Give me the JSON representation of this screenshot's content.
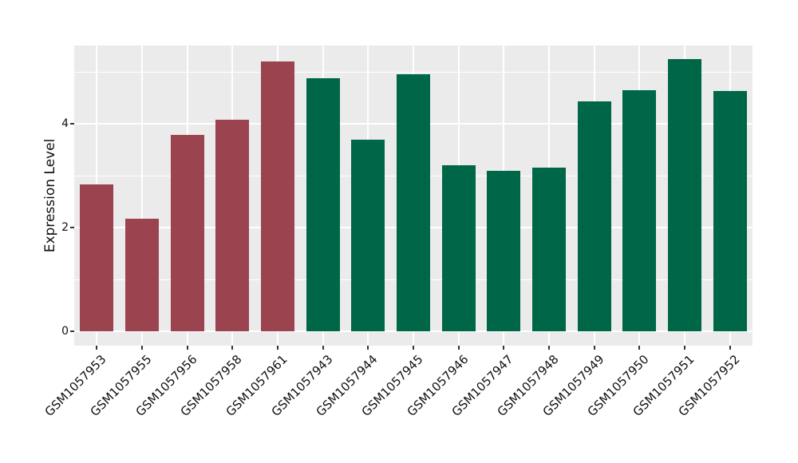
{
  "figure": {
    "background": "#ffffff",
    "panel_background": "#ebebeb",
    "grid_color": "#ffffff",
    "tick_color": "#333333",
    "text_color": "#111111"
  },
  "chart_data": {
    "type": "bar",
    "title": "",
    "xlabel": "",
    "ylabel": "Expression Level",
    "ylim": [
      0,
      5.5
    ],
    "yticks_major": [
      0,
      2,
      4
    ],
    "yticks_minor": [
      1,
      3,
      5
    ],
    "grid": "white major+minor gridlines on gray panel (ggplot style)",
    "legend": "none",
    "categories": [
      "GSM1057953",
      "GSM1057955",
      "GSM1057956",
      "GSM1057958",
      "GSM1057961",
      "GSM1057943",
      "GSM1057944",
      "GSM1057945",
      "GSM1057946",
      "GSM1057947",
      "GSM1057948",
      "GSM1057949",
      "GSM1057950",
      "GSM1057951",
      "GSM1057952"
    ],
    "values": [
      2.83,
      2.18,
      3.79,
      4.08,
      5.2,
      4.88,
      3.7,
      4.96,
      3.21,
      3.09,
      3.16,
      4.43,
      4.65,
      5.25,
      4.63
    ],
    "bar_colors": [
      "#9b4450",
      "#9b4450",
      "#9b4450",
      "#9b4450",
      "#9b4450",
      "#006648",
      "#006648",
      "#006648",
      "#006648",
      "#006648",
      "#006648",
      "#006648",
      "#006648",
      "#006648",
      "#006648"
    ]
  }
}
